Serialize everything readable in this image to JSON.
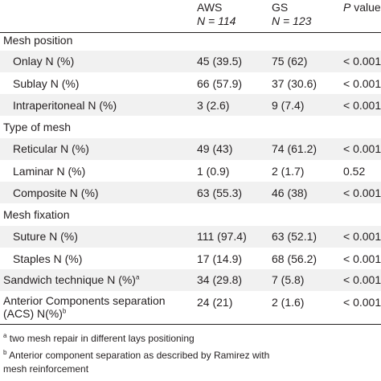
{
  "header": {
    "col1": {
      "name": "AWS",
      "n": "N = 114"
    },
    "col2": {
      "name": "GS",
      "n": "N = 123"
    },
    "col3": {
      "p_italic": "P",
      "p_rest": " value"
    }
  },
  "sections": [
    {
      "title": "Mesh position",
      "rows": [
        {
          "label": "Onlay N (%)",
          "aws": "45 (39.5)",
          "gs": "75 (62)",
          "p": "< 0.001"
        },
        {
          "label": "Sublay N (%)",
          "aws": "66 (57.9)",
          "gs": "37 (30.6)",
          "p": "< 0.001"
        },
        {
          "label": "Intraperitoneal  N (%)",
          "aws": "3 (2.6)",
          "gs": "9 (7.4)",
          "p": "< 0.001"
        }
      ]
    },
    {
      "title": "Type of mesh",
      "rows": [
        {
          "label": "Reticular N (%)",
          "aws": "49 (43)",
          "gs": "74 (61.2)",
          "p": "< 0.001"
        },
        {
          "label": "Laminar N (%)",
          "aws": "1 (0.9)",
          "gs": "2 (1.7)",
          "p": "0.52"
        },
        {
          "label": "Composite N (%)",
          "aws": "63 (55.3)",
          "gs": "46 (38)",
          "p": "< 0.001"
        }
      ]
    },
    {
      "title": "Mesh fixation",
      "rows": [
        {
          "label": "Suture N (%)",
          "aws": "111 (97.4)",
          "gs": "63 (52.1)",
          "p": "< 0.001"
        },
        {
          "label": "Staples N (%)",
          "aws": "17 (14.9)",
          "gs": "68 (56.2)",
          "p": "< 0.001"
        }
      ]
    }
  ],
  "sandwich": {
    "label": "Sandwich technique N (%)",
    "sup": "a",
    "aws": "34 (29.8)",
    "gs": "7 (5.8)",
    "p": "< 0.001"
  },
  "acs": {
    "line1": "Anterior Components separation",
    "line2": "(ACS) N(%)",
    "sup": "b",
    "aws": "24 (21)",
    "gs": "2 (1.6)",
    "p": "< 0.001"
  },
  "footnotes": [
    {
      "sup": "a",
      "text": " two mesh repair in different lays positioning"
    },
    {
      "sup": "b",
      "text": " Anterior component separation as described by Ramirez with"
    },
    {
      "sup": "",
      "text": "mesh reinforcement"
    }
  ]
}
